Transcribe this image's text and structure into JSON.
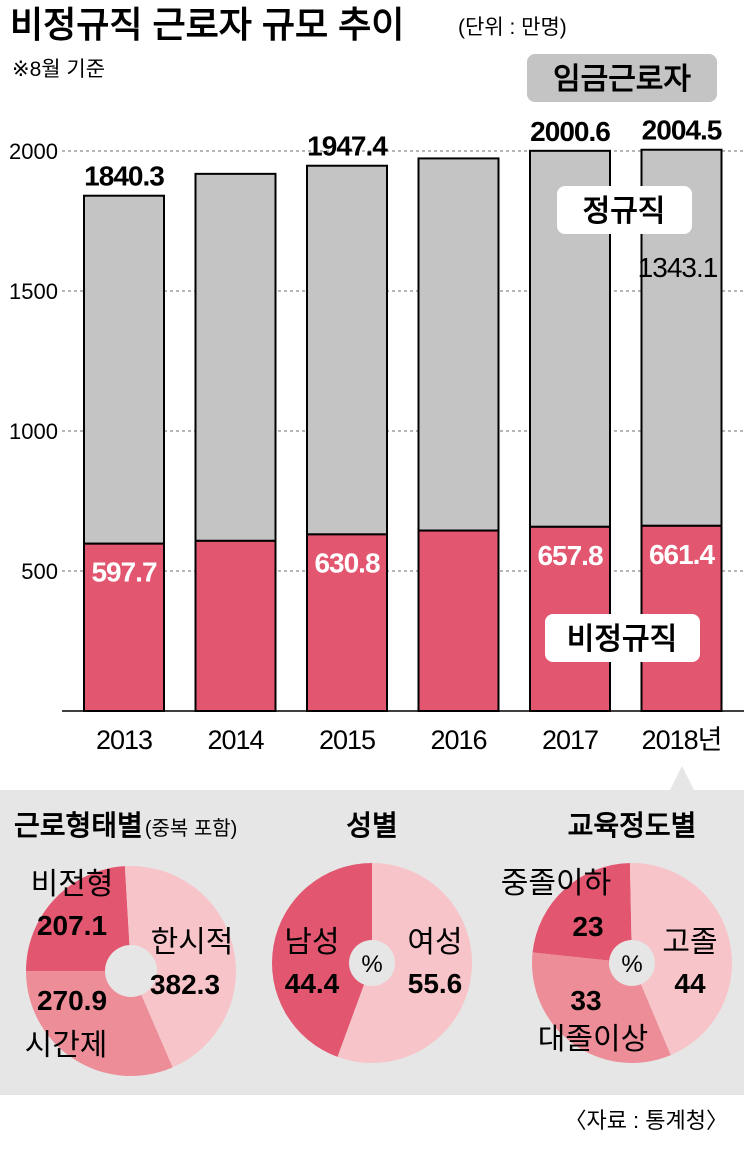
{
  "header": {
    "title": "비정규직 근로자 규모 추이",
    "unit": "(단위 : 만명)",
    "note": "※8월 기준"
  },
  "colors": {
    "regular": "#c4c4c4",
    "nonregular": "#e25670",
    "pie_dark": "#e25670",
    "pie_mid": "#ec8d98",
    "pie_light": "#f7c5c9",
    "panel": "#e6e6e6"
  },
  "chart_data": [
    {
      "type": "bar",
      "stacked": true,
      "categories": [
        "2013",
        "2014",
        "2015",
        "2016",
        "2017",
        "2018년"
      ],
      "series": [
        {
          "name": "정규직",
          "values": [
            1242.6,
            1310.7,
            1316.6,
            1329.1,
            1342.8,
            1343.1
          ]
        },
        {
          "name": "비정규직",
          "values": [
            597.7,
            607.7,
            630.8,
            644.4,
            657.8,
            661.4
          ]
        }
      ],
      "totals": [
        1840.3,
        1918.4,
        1947.4,
        1973.5,
        2000.6,
        2004.5
      ],
      "total_labels": [
        "1840.3",
        "",
        "1947.4",
        "",
        "2000.6",
        "2004.5"
      ],
      "nonregular_labels": [
        "597.7",
        "",
        "630.8",
        "",
        "657.8",
        "661.4"
      ],
      "regular_labels": [
        "",
        "",
        "",
        "",
        "",
        "1343.1"
      ],
      "legend": {
        "total": "임금근로자",
        "regular": "정규직",
        "nonregular": "비정규직"
      },
      "yticks": [
        "500",
        "1000",
        "1500",
        "2000"
      ],
      "ylim": [
        0,
        2000
      ],
      "grid": true
    },
    {
      "type": "pie",
      "title": "근로형태별",
      "subtitle": "(중복 포함)",
      "labels": [
        "비전형",
        "한시적",
        "시간제"
      ],
      "values": [
        207.1,
        382.3,
        270.9
      ],
      "value_labels": [
        "207.1",
        "382.3",
        "270.9"
      ]
    },
    {
      "type": "pie",
      "title": "성별",
      "center": "%",
      "labels": [
        "남성",
        "여성"
      ],
      "values": [
        44.4,
        55.6
      ],
      "value_labels": [
        "44.4",
        "55.6"
      ]
    },
    {
      "type": "pie",
      "title": "교육정도별",
      "center": "%",
      "labels": [
        "중졸이하",
        "고졸",
        "대졸이상"
      ],
      "values": [
        23,
        44,
        33
      ],
      "value_labels": [
        "23",
        "44",
        "33"
      ]
    }
  ],
  "source": "〈자료 : 통계청〉"
}
